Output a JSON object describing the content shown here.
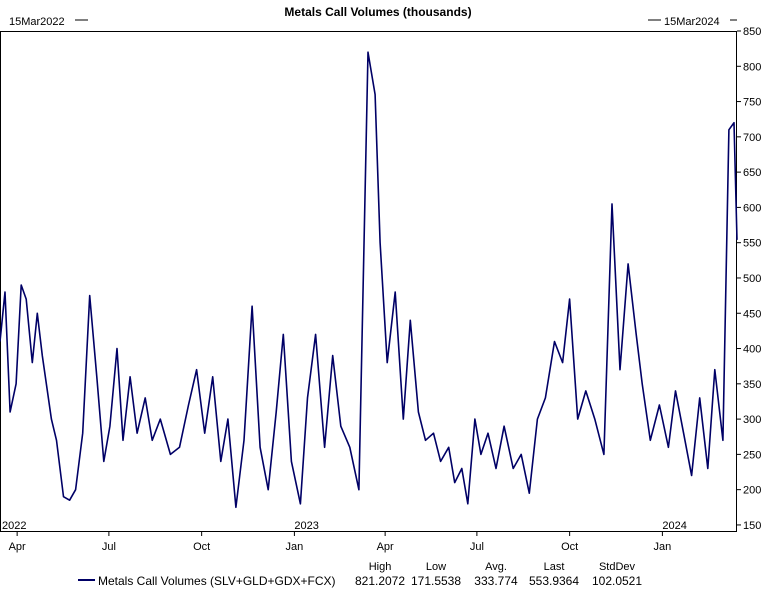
{
  "chart_data": {
    "type": "line",
    "title": "Metals Call Volumes (thousands)",
    "start_date_label": "15Mar2022",
    "end_date_label": "15Mar2024",
    "ylim": [
      140,
      850
    ],
    "yticks": [
      150,
      200,
      250,
      300,
      350,
      400,
      450,
      500,
      550,
      600,
      650,
      700,
      750,
      800,
      850
    ],
    "x_month_labels": [
      "Apr",
      "Jul",
      "Oct",
      "Jan",
      "Apr",
      "Jul",
      "Oct",
      "Jan"
    ],
    "x_month_dates": [
      "2022-04-01",
      "2022-07-01",
      "2022-10-01",
      "2023-01-01",
      "2023-04-01",
      "2023-07-01",
      "2023-10-01",
      "2024-01-01"
    ],
    "x_year_labels": [
      "2022",
      "2023",
      "2024"
    ],
    "x_year_dates": [
      "2022-03-15",
      "2023-01-01",
      "2024-01-01"
    ],
    "xlim": [
      "2022-03-15",
      "2024-03-15"
    ],
    "grid": false,
    "legend": {
      "position": "bottom"
    },
    "series": [
      {
        "name": "Metals Call Volumes (SLV+GLD+GDX+FCX)",
        "color": "#000066",
        "x": [
          "2022-03-15",
          "2022-03-20",
          "2022-03-25",
          "2022-03-31",
          "2022-04-05",
          "2022-04-10",
          "2022-04-16",
          "2022-04-21",
          "2022-04-26",
          "2022-05-05",
          "2022-05-10",
          "2022-05-17",
          "2022-05-23",
          "2022-05-29",
          "2022-06-05",
          "2022-06-12",
          "2022-06-19",
          "2022-06-26",
          "2022-07-02",
          "2022-07-09",
          "2022-07-15",
          "2022-07-22",
          "2022-07-29",
          "2022-08-06",
          "2022-08-13",
          "2022-08-21",
          "2022-08-31",
          "2022-09-09",
          "2022-09-18",
          "2022-09-26",
          "2022-10-04",
          "2022-10-12",
          "2022-10-20",
          "2022-10-27",
          "2022-11-04",
          "2022-11-12",
          "2022-11-20",
          "2022-11-28",
          "2022-12-06",
          "2022-12-14",
          "2022-12-21",
          "2022-12-29",
          "2023-01-07",
          "2023-01-14",
          "2023-01-22",
          "2023-01-31",
          "2023-02-08",
          "2023-02-16",
          "2023-02-25",
          "2023-03-06",
          "2023-03-15",
          "2023-03-22",
          "2023-03-27",
          "2023-04-03",
          "2023-04-11",
          "2023-04-19",
          "2023-04-26",
          "2023-05-04",
          "2023-05-11",
          "2023-05-19",
          "2023-05-26",
          "2023-06-03",
          "2023-06-09",
          "2023-06-16",
          "2023-06-22",
          "2023-06-29",
          "2023-07-05",
          "2023-07-12",
          "2023-07-20",
          "2023-07-28",
          "2023-08-06",
          "2023-08-14",
          "2023-08-22",
          "2023-08-30",
          "2023-09-07",
          "2023-09-16",
          "2023-09-24",
          "2023-10-01",
          "2023-10-09",
          "2023-10-17",
          "2023-10-26",
          "2023-11-04",
          "2023-11-12",
          "2023-11-20",
          "2023-11-28",
          "2023-12-06",
          "2023-12-12",
          "2023-12-20",
          "2023-12-29",
          "2024-01-07",
          "2024-01-14",
          "2024-01-22",
          "2024-01-30",
          "2024-02-07",
          "2024-02-15",
          "2024-02-22",
          "2024-03-01",
          "2024-03-07",
          "2024-03-12",
          "2024-03-15"
        ],
        "values": [
          410,
          480,
          310,
          350,
          490,
          470,
          380,
          450,
          390,
          300,
          270,
          190,
          185,
          200,
          280,
          475,
          360,
          240,
          290,
          400,
          270,
          360,
          280,
          330,
          270,
          300,
          250,
          260,
          320,
          370,
          280,
          360,
          240,
          300,
          175,
          270,
          460,
          260,
          200,
          310,
          420,
          240,
          180,
          330,
          420,
          260,
          390,
          290,
          260,
          200,
          820,
          760,
          550,
          380,
          480,
          300,
          440,
          310,
          270,
          280,
          240,
          260,
          210,
          230,
          180,
          300,
          250,
          280,
          230,
          290,
          230,
          250,
          195,
          300,
          330,
          410,
          380,
          470,
          300,
          340,
          300,
          250,
          605,
          370,
          520,
          420,
          350,
          270,
          320,
          260,
          340,
          280,
          220,
          330,
          230,
          370,
          270,
          710,
          720,
          554
        ]
      }
    ],
    "stats": {
      "headers": [
        "High",
        "Low",
        "Avg.",
        "Last",
        "StdDev"
      ],
      "values": [
        "821.2072",
        "171.5538",
        "333.774",
        "553.9364",
        "102.0521"
      ]
    }
  }
}
